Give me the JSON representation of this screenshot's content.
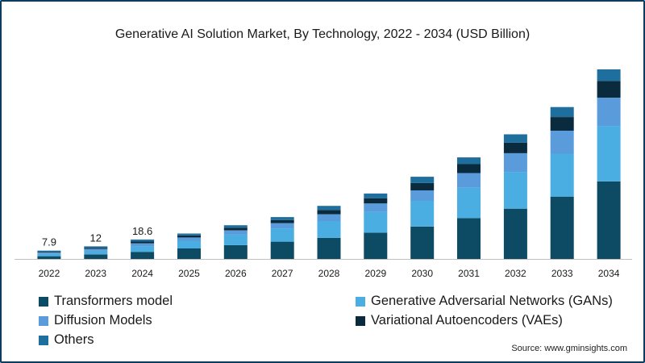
{
  "chart_data": {
    "type": "bar",
    "stacked": true,
    "title": "Generative AI Solution Market, By Technology, 2022 - 2034 (USD Billion)",
    "categories": [
      "2022",
      "2023",
      "2024",
      "2025",
      "2026",
      "2027",
      "2028",
      "2029",
      "2030",
      "2031",
      "2032",
      "2033",
      "2034"
    ],
    "series": [
      {
        "name": "Transformers model",
        "color": "#0d4a63",
        "values": [
          2.6,
          4.4,
          6.8,
          10.0,
          13.2,
          16.5,
          20.2,
          25.0,
          31.0,
          39.0,
          48.0,
          59.5,
          74.0
        ]
      },
      {
        "name": "Generative Adversarial Networks (GANs)",
        "color": "#4aaee3",
        "values": [
          2.2,
          3.5,
          5.2,
          7.3,
          10.0,
          12.7,
          16.0,
          20.0,
          24.5,
          29.0,
          35.0,
          41.0,
          53.0
        ]
      },
      {
        "name": "Diffusion Models",
        "color": "#5a9bdc",
        "values": [
          1.2,
          1.6,
          2.8,
          3.2,
          4.0,
          5.0,
          6.5,
          8.0,
          10.0,
          14.0,
          18.0,
          22.0,
          27.0
        ]
      },
      {
        "name": "Variational Autoencoders (VAEs)",
        "color": "#0a2a3d",
        "values": [
          0.7,
          1.1,
          1.8,
          2.0,
          2.5,
          3.0,
          4.0,
          5.0,
          7.0,
          8.5,
          10.0,
          13.0,
          16.0
        ]
      },
      {
        "name": "Others",
        "color": "#1f6f9e",
        "values": [
          1.2,
          1.4,
          2.0,
          1.8,
          2.5,
          2.8,
          4.0,
          4.5,
          6.0,
          6.5,
          8.0,
          9.5,
          11.0
        ]
      }
    ],
    "data_labels": [
      {
        "category": "2022",
        "text": "7.9"
      },
      {
        "category": "2023",
        "text": "12"
      },
      {
        "category": "2024",
        "text": "18.6"
      }
    ],
    "ylim": [
      0,
      181
    ],
    "xlabel": "",
    "ylabel": "",
    "grid": false,
    "legend_position": "bottom"
  },
  "source": "Source: www.gminsights.com"
}
